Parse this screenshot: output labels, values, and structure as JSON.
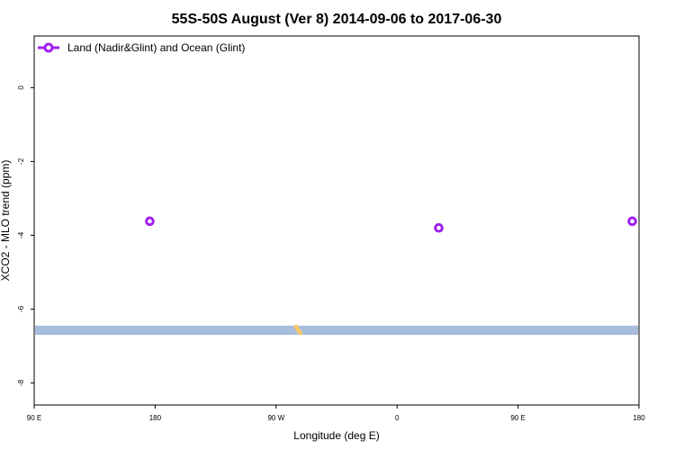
{
  "chart_data": {
    "type": "scatter",
    "title": "55S-50S August (Ver 8)   2014-09-06 to 2017-06-30",
    "xlabel": "Longitude (deg E)",
    "ylabel": "XCO2 - MLO trend (ppm)",
    "xlim": [
      90,
      540
    ],
    "ylim": [
      -8.6,
      1.4
    ],
    "x_ticks": [
      {
        "value": 90,
        "label": "90 E"
      },
      {
        "value": 180,
        "label": "180"
      },
      {
        "value": 270,
        "label": "90 W"
      },
      {
        "value": 360,
        "label": "0"
      },
      {
        "value": 450,
        "label": "90 E"
      },
      {
        "value": 540,
        "label": "180"
      }
    ],
    "y_ticks": [
      {
        "value": 0,
        "label": "0"
      },
      {
        "value": -2,
        "label": "-2"
      },
      {
        "value": -4,
        "label": "-4"
      },
      {
        "value": -6,
        "label": "-6"
      },
      {
        "value": -8,
        "label": "-8"
      }
    ],
    "grid": false,
    "legend_position": "top-left",
    "series": [
      {
        "name": "Land (Nadir&Glint) and Ocean (Glint)",
        "color": "#a020f0",
        "marker": "open-circle",
        "points": [
          {
            "x": 176,
            "y": -3.62
          },
          {
            "x": 391,
            "y": -3.8
          },
          {
            "x": 535,
            "y": -3.62
          }
        ]
      }
    ],
    "land_band": {
      "color": "#a8bcdc",
      "y_range": [
        -6.7,
        -6.45
      ],
      "x_range": [
        90,
        540
      ]
    },
    "land_features": {
      "color": "#f5c969",
      "points": [
        {
          "x": 285,
          "y": -6.48
        },
        {
          "x": 286,
          "y": -6.55
        },
        {
          "x": 287,
          "y": -6.6
        },
        {
          "x": 288,
          "y": -6.65
        }
      ]
    }
  }
}
